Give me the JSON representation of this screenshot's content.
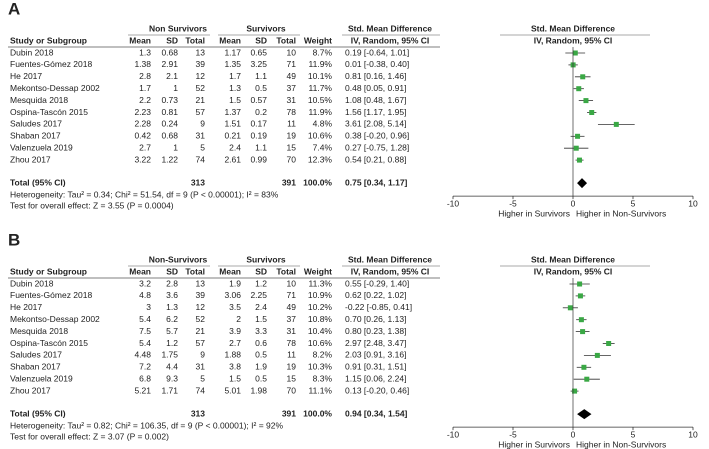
{
  "chart_data": [
    {
      "type": "forest",
      "label": "A",
      "header_groups": [
        "Non Survivors",
        "Survivors",
        "Std. Mean Difference",
        "Std. Mean Difference"
      ],
      "columns": [
        "Study or Subgroup",
        "Mean",
        "SD",
        "Total",
        "Mean",
        "SD",
        "Total",
        "Weight",
        "IV, Random, 95% CI",
        "IV, Random, 95% CI"
      ],
      "rows": [
        [
          "Dubin 2018",
          "1.3",
          "0.68",
          "13",
          "1.17",
          "0.65",
          "10",
          "8.7%",
          "0.19 [-0.64, 1.01]"
        ],
        [
          "Fuentes-Gómez 2018",
          "1.38",
          "2.91",
          "39",
          "1.35",
          "3.25",
          "71",
          "11.9%",
          "0.01 [-0.38, 0.40]"
        ],
        [
          "He 2017",
          "2.8",
          "2.1",
          "12",
          "1.7",
          "1.1",
          "49",
          "10.1%",
          "0.81 [0.16, 1.46]"
        ],
        [
          "Mekontso-Dessap 2002",
          "1.7",
          "1",
          "52",
          "1.3",
          "0.5",
          "37",
          "11.7%",
          "0.48 [0.05, 0.91]"
        ],
        [
          "Mesquida 2018",
          "2.2",
          "0.73",
          "21",
          "1.5",
          "0.57",
          "31",
          "10.5%",
          "1.08 [0.48, 1.67]"
        ],
        [
          "Ospina-Tascón 2015",
          "2.23",
          "0.81",
          "57",
          "1.37",
          "0.2",
          "78",
          "11.9%",
          "1.56 [1.17, 1.95]"
        ],
        [
          "Saludes 2017",
          "2.28",
          "0.24",
          "9",
          "1.51",
          "0.17",
          "11",
          "4.8%",
          "3.61 [2.08, 5.14]"
        ],
        [
          "Shaban 2017",
          "0.42",
          "0.68",
          "31",
          "0.21",
          "0.19",
          "19",
          "10.6%",
          "0.38 [-0.20, 0.96]"
        ],
        [
          "Valenzuela 2019",
          "2.7",
          "1",
          "5",
          "2.4",
          "1.1",
          "15",
          "7.4%",
          "0.27 [-0.75, 1.28]"
        ],
        [
          "Zhou 2017",
          "3.22",
          "1.22",
          "74",
          "2.61",
          "0.99",
          "70",
          "12.3%",
          "0.54 [0.21, 0.88]"
        ]
      ],
      "values": [
        0.19,
        0.01,
        0.81,
        0.48,
        1.08,
        1.56,
        3.61,
        0.38,
        0.27,
        0.54
      ],
      "ci_low": [
        -0.64,
        -0.38,
        0.16,
        0.05,
        0.48,
        1.17,
        2.08,
        -0.2,
        -0.75,
        0.21
      ],
      "ci_high": [
        1.01,
        0.4,
        1.46,
        0.91,
        1.67,
        1.95,
        5.14,
        0.96,
        1.28,
        0.88
      ],
      "total_row": [
        "Total (95% CI)",
        "313",
        "391",
        "100.0%",
        "0.75 [0.34, 1.17]"
      ],
      "total_value": 0.75,
      "total_ci": [
        0.34,
        1.17
      ],
      "heterogeneity": "Heterogeneity: Tau² = 0.34; Chi² = 51.54, df = 9 (P < 0.00001); I² = 83%",
      "overall_test": "Test for overall effect: Z = 3.55 (P = 0.0004)",
      "xlim": [
        -10,
        10
      ],
      "xticks": [
        -10,
        -5,
        0,
        5,
        10
      ],
      "xlabel_left": "Higher in Survivors",
      "xlabel_right": "Higher in Non-Survivors",
      "color": "#3aa845"
    },
    {
      "type": "forest",
      "label": "B",
      "header_groups": [
        "Non-Survivors",
        "Survivors",
        "Std. Mean Difference",
        "Std. Mean Difference"
      ],
      "columns": [
        "Study or Subgroup",
        "Mean",
        "SD",
        "Total",
        "Mean",
        "SD",
        "Total",
        "Weight",
        "IV, Random, 95% CI",
        "IV, Random, 95% CI"
      ],
      "rows": [
        [
          "Dubin 2018",
          "3.2",
          "2.8",
          "13",
          "1.9",
          "1.2",
          "10",
          "11.3%",
          "0.55 [-0.29, 1.40]"
        ],
        [
          "Fuentes-Gómez 2018",
          "4.8",
          "3.6",
          "39",
          "3.06",
          "2.25",
          "71",
          "10.9%",
          "0.62 [0.22, 1.02]"
        ],
        [
          "He 2017",
          "3",
          "1.3",
          "12",
          "3.5",
          "2.4",
          "49",
          "10.2%",
          "-0.22 [-0.85, 0.41]"
        ],
        [
          "Mekontso-Dessap 2002",
          "5.4",
          "6.2",
          "52",
          "2",
          "1.5",
          "37",
          "10.8%",
          "0.70 [0.26, 1.13]"
        ],
        [
          "Mesquida 2018",
          "7.5",
          "5.7",
          "21",
          "3.9",
          "3.3",
          "31",
          "10.4%",
          "0.80 [0.23, 1.38]"
        ],
        [
          "Ospina-Tascón 2015",
          "5.4",
          "1.2",
          "57",
          "2.7",
          "0.6",
          "78",
          "10.6%",
          "2.97 [2.48, 3.47]"
        ],
        [
          "Saludes 2017",
          "4.48",
          "1.75",
          "9",
          "1.88",
          "0.5",
          "11",
          "8.2%",
          "2.03 [0.91, 3.16]"
        ],
        [
          "Shaban 2017",
          "7.2",
          "4.4",
          "31",
          "3.8",
          "1.9",
          "19",
          "10.3%",
          "0.91 [0.31, 1.51]"
        ],
        [
          "Valenzuela 2019",
          "6.8",
          "9.3",
          "5",
          "1.5",
          "0.5",
          "15",
          "8.3%",
          "1.15 [0.06, 2.24]"
        ],
        [
          "Zhou 2017",
          "5.21",
          "1.71",
          "74",
          "5.01",
          "1.98",
          "70",
          "11.1%",
          "0.13 [-0.20, 0.46]"
        ]
      ],
      "values": [
        0.55,
        0.62,
        -0.22,
        0.7,
        0.8,
        2.97,
        2.03,
        0.91,
        1.15,
        0.13
      ],
      "ci_low": [
        -0.29,
        0.22,
        -0.85,
        0.26,
        0.23,
        2.48,
        0.91,
        0.31,
        0.06,
        -0.2
      ],
      "ci_high": [
        1.4,
        1.02,
        0.41,
        1.13,
        1.38,
        3.47,
        3.16,
        1.51,
        2.24,
        0.46
      ],
      "total_row": [
        "Total (95% CI)",
        "313",
        "391",
        "100.0%",
        "0.94 [0.34, 1.54]"
      ],
      "total_value": 0.94,
      "total_ci": [
        0.34,
        1.54
      ],
      "heterogeneity": "Heterogeneity: Tau² = 0.82; Chi² = 106.35, df = 9 (P < 0.00001); I² = 92%",
      "overall_test": "Test for overall effect: Z = 3.07 (P = 0.002)",
      "xlim": [
        -10,
        10
      ],
      "xticks": [
        -10,
        -5,
        0,
        5,
        10
      ],
      "xlabel_left": "Higher in Survivors",
      "xlabel_right": "Higher in Non-Survivors",
      "color": "#3aa845"
    }
  ]
}
